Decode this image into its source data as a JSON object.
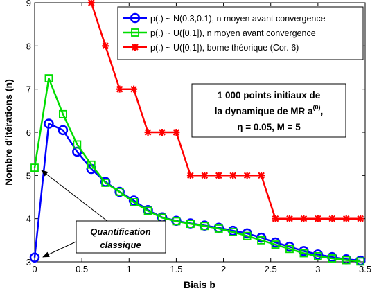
{
  "chart_data": {
    "type": "line",
    "xlabel": "Biais b",
    "ylabel": "Nombre d'itérations (n)",
    "xlim": [
      0,
      3.5
    ],
    "ylim": [
      3,
      9
    ],
    "xticks": [
      "0",
      "0.5",
      "1",
      "1.5",
      "2",
      "2.5",
      "3",
      "3.5"
    ],
    "yticks": [
      "3",
      "4",
      "5",
      "6",
      "7",
      "8",
      "9"
    ],
    "grid": false,
    "legend_position": "top-right",
    "series": [
      {
        "name": "p(.) ~ N(0.3,0.1), n moyen avant convergence",
        "color": "#0000ff",
        "marker": "circle",
        "x": [
          0,
          0.15,
          0.3,
          0.45,
          0.6,
          0.75,
          0.9,
          1.05,
          1.2,
          1.35,
          1.5,
          1.65,
          1.8,
          1.95,
          2.1,
          2.25,
          2.4,
          2.55,
          2.7,
          2.85,
          3.0,
          3.15,
          3.3,
          3.45
        ],
        "y": [
          3.1,
          6.2,
          6.05,
          5.55,
          5.15,
          4.85,
          4.62,
          4.42,
          4.2,
          4.03,
          3.95,
          3.89,
          3.84,
          3.79,
          3.72,
          3.66,
          3.56,
          3.45,
          3.35,
          3.25,
          3.17,
          3.11,
          3.06,
          3.03
        ]
      },
      {
        "name": "p(.) ~ U([0,1]), n moyen avant convergence",
        "color": "#00dd00",
        "marker": "square",
        "x": [
          0,
          0.15,
          0.3,
          0.45,
          0.6,
          0.75,
          0.9,
          1.05,
          1.2,
          1.35,
          1.5,
          1.65,
          1.8,
          1.95,
          2.1,
          2.25,
          2.4,
          2.55,
          2.7,
          2.85,
          3.0,
          3.15,
          3.3,
          3.45
        ],
        "y": [
          5.18,
          7.25,
          6.42,
          5.72,
          5.25,
          4.83,
          4.62,
          4.38,
          4.18,
          4.02,
          3.94,
          3.88,
          3.83,
          3.77,
          3.69,
          3.6,
          3.5,
          3.4,
          3.3,
          3.2,
          3.13,
          3.08,
          3.04,
          3.01
        ]
      },
      {
        "name": "p(.) ~ U([0,1]), borne théorique (Cor. 6)",
        "color": "#ff0000",
        "marker": "star",
        "x": [
          0.6,
          0.75,
          0.9,
          1.05,
          1.2,
          1.35,
          1.5,
          1.65,
          1.8,
          1.95,
          2.1,
          2.25,
          2.4,
          2.55,
          2.7,
          2.85,
          3.0,
          3.15,
          3.3,
          3.45
        ],
        "y": [
          9,
          8,
          7,
          7,
          6,
          6,
          6,
          5,
          5,
          5,
          5,
          5,
          5,
          4,
          4,
          4,
          4,
          4,
          4,
          4
        ]
      }
    ],
    "annotation": {
      "line1": "1 000 points initiaux de",
      "line2_prefix": "la dynamique de MR a",
      "line2_sup": "(0)",
      "line2_suffix": ",",
      "line3": "η = 0.05, M = 5"
    },
    "callout": {
      "line1": "Quantification",
      "line2": "classique"
    }
  }
}
